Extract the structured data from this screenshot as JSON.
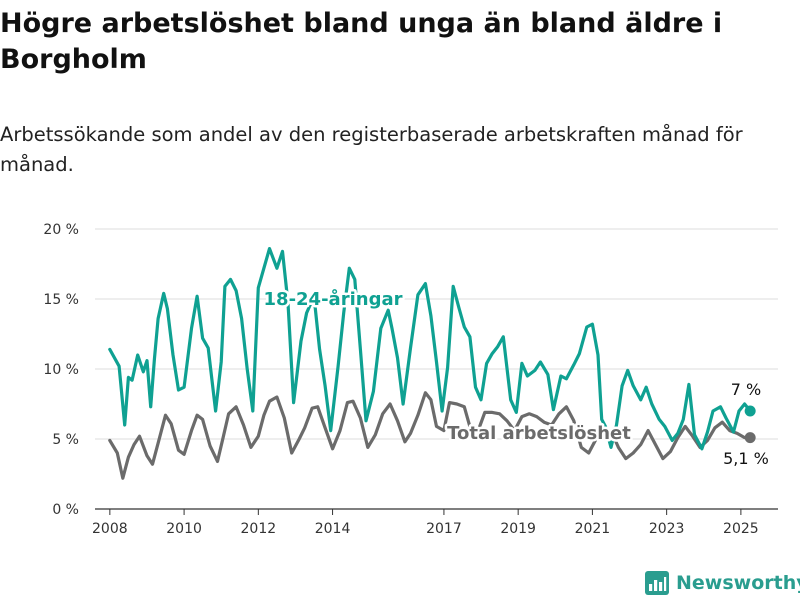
{
  "title": "Högre arbetslöshet bland unga än bland äldre i Borgholm",
  "subtitle": "Arbetssökande som andel av den registerbaserade arbetskraften månad för månad.",
  "brand": "Newsworthy",
  "colors": {
    "youth": "#0fa192",
    "total": "#6b6b6b",
    "grid": "#dddddd",
    "brand": "#2a9d8f"
  },
  "chart_data": {
    "type": "line",
    "title": "Högre arbetslöshet bland unga än bland äldre i Borgholm",
    "subtitle": "Arbetssökande som andel av den registerbaserade arbetskraften månad för månad.",
    "xlabel": "",
    "ylabel": "",
    "xlim": [
      2007.6,
      2026.0
    ],
    "ylim": [
      0,
      20
    ],
    "x_ticks": [
      2008,
      2010,
      2012,
      2014,
      2017,
      2019,
      2021,
      2023,
      2025
    ],
    "x_tick_labels": [
      "2008",
      "2010",
      "2012",
      "2014",
      "2017",
      "2019",
      "2021",
      "2023",
      "2025"
    ],
    "y_ticks": [
      0,
      5,
      10,
      15,
      20
    ],
    "y_tick_labels": [
      "0 %",
      "5 %",
      "10 %",
      "15 %",
      "20 %"
    ],
    "grid": true,
    "series": [
      {
        "name": "18-24-åringar",
        "end_label": "7 %",
        "color": "#0fa192",
        "x": [
          2008.0,
          2008.25,
          2008.4,
          2008.5,
          2008.6,
          2008.75,
          2008.9,
          2009.0,
          2009.1,
          2009.2,
          2009.3,
          2009.45,
          2009.55,
          2009.7,
          2009.85,
          2010.0,
          2010.2,
          2010.35,
          2010.5,
          2010.65,
          2010.85,
          2011.0,
          2011.1,
          2011.25,
          2011.4,
          2011.55,
          2011.7,
          2011.85,
          2012.0,
          2012.15,
          2012.3,
          2012.5,
          2012.65,
          2012.8,
          2012.95,
          2013.15,
          2013.3,
          2013.5,
          2013.65,
          2013.8,
          2013.95,
          2014.15,
          2014.3,
          2014.45,
          2014.6,
          2014.75,
          2014.9,
          2015.1,
          2015.3,
          2015.5,
          2015.6,
          2015.75,
          2015.9,
          2016.1,
          2016.3,
          2016.5,
          2016.65,
          2016.8,
          2016.95,
          2017.1,
          2017.25,
          2017.4,
          2017.55,
          2017.7,
          2017.85,
          2018.0,
          2018.15,
          2018.3,
          2018.45,
          2018.6,
          2018.8,
          2018.95,
          2019.1,
          2019.25,
          2019.45,
          2019.6,
          2019.8,
          2019.95,
          2020.15,
          2020.3,
          2020.5,
          2020.65,
          2020.85,
          2021.0,
          2021.15,
          2021.25,
          2021.35,
          2021.5,
          2021.65,
          2021.8,
          2021.95,
          2022.1,
          2022.3,
          2022.45,
          2022.6,
          2022.8,
          2022.95,
          2023.15,
          2023.3,
          2023.45,
          2023.6,
          2023.75,
          2023.95,
          2024.1,
          2024.25,
          2024.45,
          2024.6,
          2024.8,
          2024.95,
          2025.1,
          2025.25
        ],
        "values": [
          11.4,
          10.2,
          6.0,
          9.4,
          9.2,
          11.0,
          9.8,
          10.6,
          7.3,
          10.7,
          13.6,
          15.4,
          14.3,
          11.0,
          8.5,
          8.7,
          12.9,
          15.2,
          12.2,
          11.5,
          7.0,
          10.5,
          15.9,
          16.4,
          15.6,
          13.6,
          10.0,
          7.0,
          15.8,
          17.2,
          18.6,
          17.2,
          18.4,
          14.7,
          7.6,
          12.0,
          14.0,
          15.2,
          11.4,
          8.8,
          5.6,
          10.2,
          14.0,
          17.2,
          16.4,
          11.4,
          6.3,
          8.4,
          12.9,
          14.2,
          12.9,
          10.8,
          7.5,
          11.5,
          15.3,
          16.1,
          13.8,
          10.5,
          7.0,
          10.1,
          15.9,
          14.4,
          13.0,
          12.3,
          8.7,
          7.8,
          10.4,
          11.1,
          11.6,
          12.3,
          7.8,
          6.9,
          10.4,
          9.5,
          9.9,
          10.5,
          9.6,
          7.1,
          9.5,
          9.3,
          10.3,
          11.1,
          13.0,
          13.2,
          11.0,
          6.4,
          5.9,
          4.4,
          6.0,
          8.8,
          9.9,
          8.8,
          7.8,
          8.7,
          7.5,
          6.4,
          5.9,
          4.9,
          5.4,
          6.4,
          8.9,
          5.3,
          4.3,
          5.5,
          7.0,
          7.3,
          6.5,
          5.5,
          7.0,
          7.5,
          7.0
        ]
      },
      {
        "name": "Total arbetslöshet",
        "end_label": "5,1 %",
        "color": "#6b6b6b",
        "x": [
          2008.0,
          2008.2,
          2008.35,
          2008.5,
          2008.65,
          2008.8,
          2009.0,
          2009.15,
          2009.3,
          2009.5,
          2009.65,
          2009.85,
          2010.0,
          2010.2,
          2010.35,
          2010.5,
          2010.7,
          2010.9,
          2011.05,
          2011.2,
          2011.4,
          2011.6,
          2011.8,
          2012.0,
          2012.15,
          2012.3,
          2012.5,
          2012.7,
          2012.9,
          2013.1,
          2013.25,
          2013.45,
          2013.6,
          2013.8,
          2014.0,
          2014.2,
          2014.4,
          2014.55,
          2014.75,
          2014.95,
          2015.15,
          2015.35,
          2015.55,
          2015.75,
          2015.95,
          2016.1,
          2016.3,
          2016.5,
          2016.65,
          2016.8,
          2017.0,
          2017.15,
          2017.35,
          2017.55,
          2017.75,
          2017.95,
          2018.1,
          2018.3,
          2018.5,
          2018.7,
          2018.9,
          2019.1,
          2019.3,
          2019.5,
          2019.7,
          2019.9,
          2020.1,
          2020.3,
          2020.5,
          2020.7,
          2020.9,
          2021.1,
          2021.3,
          2021.5,
          2021.7,
          2021.9,
          2022.1,
          2022.3,
          2022.5,
          2022.7,
          2022.9,
          2023.1,
          2023.3,
          2023.5,
          2023.7,
          2023.9,
          2024.1,
          2024.3,
          2024.5,
          2024.7,
          2024.9,
          2025.1,
          2025.25
        ],
        "values": [
          4.9,
          4.0,
          2.2,
          3.7,
          4.6,
          5.2,
          3.8,
          3.2,
          4.7,
          6.7,
          6.1,
          4.2,
          3.9,
          5.6,
          6.7,
          6.4,
          4.5,
          3.4,
          5.1,
          6.8,
          7.3,
          6.0,
          4.4,
          5.2,
          6.7,
          7.7,
          8.0,
          6.5,
          4.0,
          5.0,
          5.8,
          7.2,
          7.3,
          5.8,
          4.3,
          5.6,
          7.6,
          7.7,
          6.5,
          4.4,
          5.3,
          6.8,
          7.5,
          6.3,
          4.8,
          5.4,
          6.7,
          8.3,
          7.8,
          5.9,
          5.6,
          7.6,
          7.5,
          7.3,
          5.4,
          5.8,
          6.9,
          6.9,
          6.8,
          6.3,
          5.6,
          6.6,
          6.8,
          6.6,
          6.2,
          6.0,
          6.8,
          7.3,
          6.3,
          4.4,
          4.0,
          5.0,
          5.3,
          5.6,
          4.4,
          3.6,
          4.0,
          4.6,
          5.6,
          4.6,
          3.6,
          4.1,
          5.1,
          5.9,
          5.2,
          4.4,
          4.9,
          5.8,
          6.2,
          5.6,
          5.4,
          5.1,
          5.1
        ]
      }
    ]
  }
}
